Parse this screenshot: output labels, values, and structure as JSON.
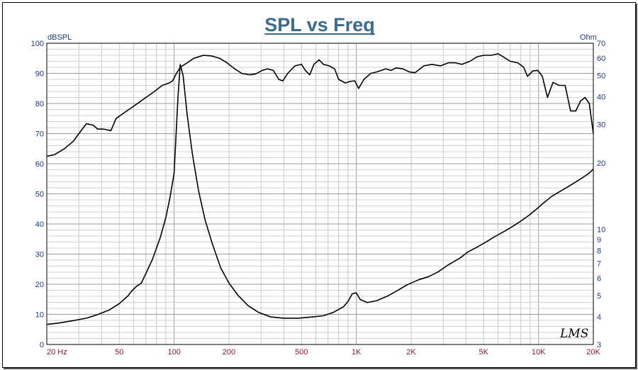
{
  "chart_data": {
    "type": "line",
    "title": "SPL vs Freq",
    "ylabel": "dBSPL",
    "y2label": "Ohm",
    "x_scale": "log",
    "y2_scale": "log",
    "xlim": [
      20,
      20000
    ],
    "ylim": [
      0,
      100
    ],
    "y2lim": [
      3,
      70
    ],
    "grid": true,
    "xticks": [
      {
        "value": 20,
        "label": "20  Hz"
      },
      {
        "value": 50,
        "label": "50"
      },
      {
        "value": 100,
        "label": "100"
      },
      {
        "value": 200,
        "label": "200"
      },
      {
        "value": 500,
        "label": "500"
      },
      {
        "value": 1000,
        "label": "1K"
      },
      {
        "value": 2000,
        "label": "2K"
      },
      {
        "value": 5000,
        "label": "5K"
      },
      {
        "value": 10000,
        "label": "10K"
      },
      {
        "value": 20000,
        "label": "20K"
      }
    ],
    "yticks": [
      0,
      10,
      20,
      30,
      40,
      50,
      60,
      70,
      80,
      90,
      100
    ],
    "y2ticks": [
      {
        "value": 3,
        "label": "3"
      },
      {
        "value": 4,
        "label": "4"
      },
      {
        "value": 5,
        "label": "5"
      },
      {
        "value": 6,
        "label": "6"
      },
      {
        "value": 7,
        "label": "7"
      },
      {
        "value": 8,
        "label": "8"
      },
      {
        "value": 9,
        "label": "9"
      },
      {
        "value": 10,
        "label": "10"
      },
      {
        "value": 20,
        "label": "20"
      },
      {
        "value": 30,
        "label": "30"
      },
      {
        "value": 40,
        "label": "40"
      },
      {
        "value": 50,
        "label": "50"
      },
      {
        "value": 60,
        "label": "60"
      },
      {
        "value": 70,
        "label": "70"
      }
    ],
    "series": [
      {
        "axis": "left",
        "color": "#000000",
        "points": [
          [
            20,
            62.5
          ],
          [
            22,
            63
          ],
          [
            25,
            65
          ],
          [
            28,
            67.5
          ],
          [
            30,
            70
          ],
          [
            33,
            73.3
          ],
          [
            36,
            72.8
          ],
          [
            38,
            71.5
          ],
          [
            41,
            71.5
          ],
          [
            45,
            71
          ],
          [
            48,
            75
          ],
          [
            52,
            76.5
          ],
          [
            58,
            78.5
          ],
          [
            64,
            80.3
          ],
          [
            70,
            82
          ],
          [
            78,
            84
          ],
          [
            86,
            86
          ],
          [
            94,
            86.8
          ],
          [
            98,
            87.5
          ],
          [
            103,
            90
          ],
          [
            108,
            92
          ],
          [
            118,
            93.5
          ],
          [
            128,
            95
          ],
          [
            145,
            96
          ],
          [
            160,
            95.8
          ],
          [
            178,
            95
          ],
          [
            195,
            93.5
          ],
          [
            215,
            91.5
          ],
          [
            235,
            90
          ],
          [
            260,
            89.5
          ],
          [
            280,
            89.8
          ],
          [
            305,
            91
          ],
          [
            325,
            91.5
          ],
          [
            350,
            91
          ],
          [
            375,
            88
          ],
          [
            395,
            87.5
          ],
          [
            420,
            90
          ],
          [
            460,
            92.5
          ],
          [
            500,
            93
          ],
          [
            525,
            91
          ],
          [
            555,
            89.5
          ],
          [
            585,
            93
          ],
          [
            625,
            94.5
          ],
          [
            660,
            93
          ],
          [
            710,
            92.5
          ],
          [
            760,
            91.5
          ],
          [
            800,
            88
          ],
          [
            870,
            86.8
          ],
          [
            920,
            87.3
          ],
          [
            980,
            87.5
          ],
          [
            1030,
            85
          ],
          [
            1100,
            88
          ],
          [
            1200,
            90
          ],
          [
            1300,
            90.5
          ],
          [
            1450,
            91.5
          ],
          [
            1550,
            91
          ],
          [
            1650,
            91.8
          ],
          [
            1800,
            91.5
          ],
          [
            1950,
            90.5
          ],
          [
            2100,
            90.2
          ],
          [
            2350,
            92.5
          ],
          [
            2600,
            93
          ],
          [
            2900,
            92.5
          ],
          [
            3200,
            93.5
          ],
          [
            3500,
            93.5
          ],
          [
            3800,
            93
          ],
          [
            4200,
            94
          ],
          [
            4600,
            95.5
          ],
          [
            5000,
            96
          ],
          [
            5500,
            96
          ],
          [
            6000,
            96.5
          ],
          [
            6400,
            95.5
          ],
          [
            7000,
            94
          ],
          [
            7700,
            93.5
          ],
          [
            8300,
            92
          ],
          [
            8700,
            89
          ],
          [
            9300,
            90.8
          ],
          [
            9900,
            91
          ],
          [
            10500,
            89
          ],
          [
            11200,
            82
          ],
          [
            12000,
            87
          ],
          [
            13000,
            86
          ],
          [
            14000,
            86
          ],
          [
            15000,
            77.5
          ],
          [
            16000,
            77.5
          ],
          [
            17000,
            80.8
          ],
          [
            18000,
            82
          ],
          [
            19000,
            80
          ],
          [
            20000,
            70
          ]
        ]
      },
      {
        "axis": "right",
        "color": "#000000",
        "points": [
          [
            20,
            3.7
          ],
          [
            23,
            3.75
          ],
          [
            28,
            3.85
          ],
          [
            33,
            3.95
          ],
          [
            38,
            4.1
          ],
          [
            44,
            4.3
          ],
          [
            50,
            4.6
          ],
          [
            56,
            5
          ],
          [
            58,
            5.2
          ],
          [
            62,
            5.5
          ],
          [
            66,
            5.7
          ],
          [
            70,
            6.3
          ],
          [
            76,
            7.3
          ],
          [
            84,
            9.2
          ],
          [
            90,
            11.3
          ],
          [
            95,
            14
          ],
          [
            100,
            18
          ],
          [
            105,
            40
          ],
          [
            108,
            56
          ],
          [
            112,
            50
          ],
          [
            118,
            33
          ],
          [
            126,
            22
          ],
          [
            136,
            15
          ],
          [
            148,
            11
          ],
          [
            162,
            8.6
          ],
          [
            180,
            6.7
          ],
          [
            200,
            5.7
          ],
          [
            225,
            5
          ],
          [
            255,
            4.5
          ],
          [
            290,
            4.2
          ],
          [
            340,
            4
          ],
          [
            400,
            3.95
          ],
          [
            480,
            3.95
          ],
          [
            570,
            4
          ],
          [
            660,
            4.05
          ],
          [
            750,
            4.2
          ],
          [
            850,
            4.45
          ],
          [
            900,
            4.7
          ],
          [
            950,
            5.1
          ],
          [
            1000,
            5.15
          ],
          [
            1050,
            4.8
          ],
          [
            1150,
            4.65
          ],
          [
            1300,
            4.75
          ],
          [
            1500,
            5
          ],
          [
            1700,
            5.3
          ],
          [
            1900,
            5.6
          ],
          [
            2200,
            5.9
          ],
          [
            2500,
            6.1
          ],
          [
            2800,
            6.4
          ],
          [
            3200,
            6.9
          ],
          [
            3700,
            7.4
          ],
          [
            4100,
            7.9
          ],
          [
            4600,
            8.3
          ],
          [
            5200,
            8.8
          ],
          [
            5800,
            9.3
          ],
          [
            6500,
            9.8
          ],
          [
            7200,
            10.3
          ],
          [
            8000,
            10.9
          ],
          [
            8900,
            11.6
          ],
          [
            9800,
            12.4
          ],
          [
            10800,
            13.3
          ],
          [
            11800,
            14.1
          ],
          [
            13000,
            14.8
          ],
          [
            14500,
            15.6
          ],
          [
            16000,
            16.4
          ],
          [
            17500,
            17.2
          ],
          [
            19000,
            18
          ],
          [
            20000,
            18.8
          ]
        ]
      }
    ]
  },
  "logo_text": "LMS"
}
